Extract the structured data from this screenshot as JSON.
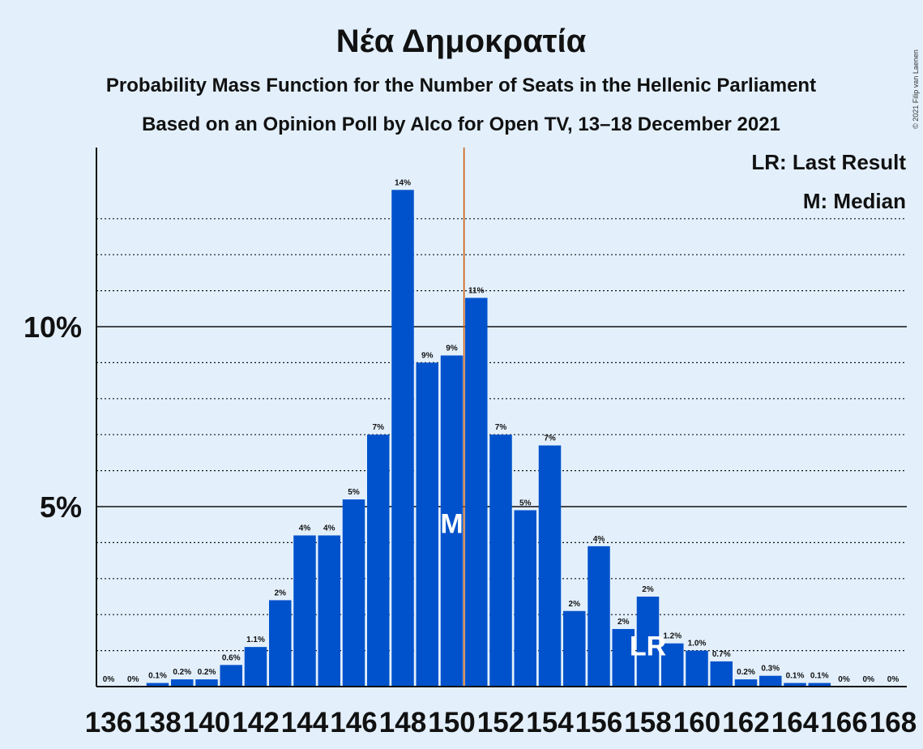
{
  "title": "Νέα Δημοκρατία",
  "subtitle1": "Probability Mass Function for the Number of Seats in the Hellenic Parliament",
  "subtitle2": "Based on an Opinion Poll by Alco for Open TV, 13–18 December 2021",
  "copyright": "© 2021 Filip van Laenen",
  "legend": {
    "lr": "LR: Last Result",
    "median": "M: Median"
  },
  "markers": {
    "median_label": "M",
    "median_seat": 150,
    "majority_line_x": 150.5,
    "last_result_label": "LR",
    "last_result_seat": 158
  },
  "colors": {
    "bar": "#0052cc",
    "majority_line": "#cc5500",
    "background": "#e3f0fc"
  },
  "chart_data": {
    "type": "bar",
    "title": "Νέα Δημοκρατία",
    "xlabel": "",
    "ylabel": "",
    "ylim": [
      0,
      15
    ],
    "yticks": [
      {
        "value": 5,
        "label": "5%"
      },
      {
        "value": 10,
        "label": "10%"
      }
    ],
    "minor_grid": [
      1,
      2,
      3,
      4,
      6,
      7,
      8,
      9,
      11,
      12,
      13
    ],
    "x_tick_labels": [
      "136",
      "138",
      "140",
      "142",
      "144",
      "146",
      "148",
      "150",
      "152",
      "154",
      "156",
      "158",
      "160",
      "162",
      "164",
      "166",
      "168"
    ],
    "x": [
      136,
      137,
      138,
      139,
      140,
      141,
      142,
      143,
      144,
      145,
      146,
      147,
      148,
      149,
      150,
      151,
      152,
      153,
      154,
      155,
      156,
      157,
      158,
      159,
      160,
      161,
      162,
      163,
      164,
      165,
      166,
      167,
      168
    ],
    "values": [
      0,
      0,
      0.1,
      0.2,
      0.2,
      0.6,
      1.1,
      2.4,
      4.2,
      4.2,
      5.2,
      7.0,
      13.8,
      9.0,
      9.2,
      10.8,
      7.0,
      4.9,
      6.7,
      2.1,
      3.9,
      1.6,
      2.5,
      1.2,
      1.0,
      0.7,
      0.2,
      0.3,
      0.1,
      0.1,
      0,
      0,
      0
    ],
    "labels": [
      "0%",
      "0%",
      "0.1%",
      "0.2%",
      "0.2%",
      "0.6%",
      "1.1%",
      "2%",
      "4%",
      "4%",
      "5%",
      "7%",
      "14%",
      "9%",
      "9%",
      "11%",
      "7%",
      "5%",
      "7%",
      "2%",
      "4%",
      "2%",
      "2%",
      "1.2%",
      "1.0%",
      "0.7%",
      "0.2%",
      "0.3%",
      "0.1%",
      "0.1%",
      "0%",
      "0%",
      "0%"
    ],
    "grid": true,
    "legend_placement": "top-right"
  }
}
